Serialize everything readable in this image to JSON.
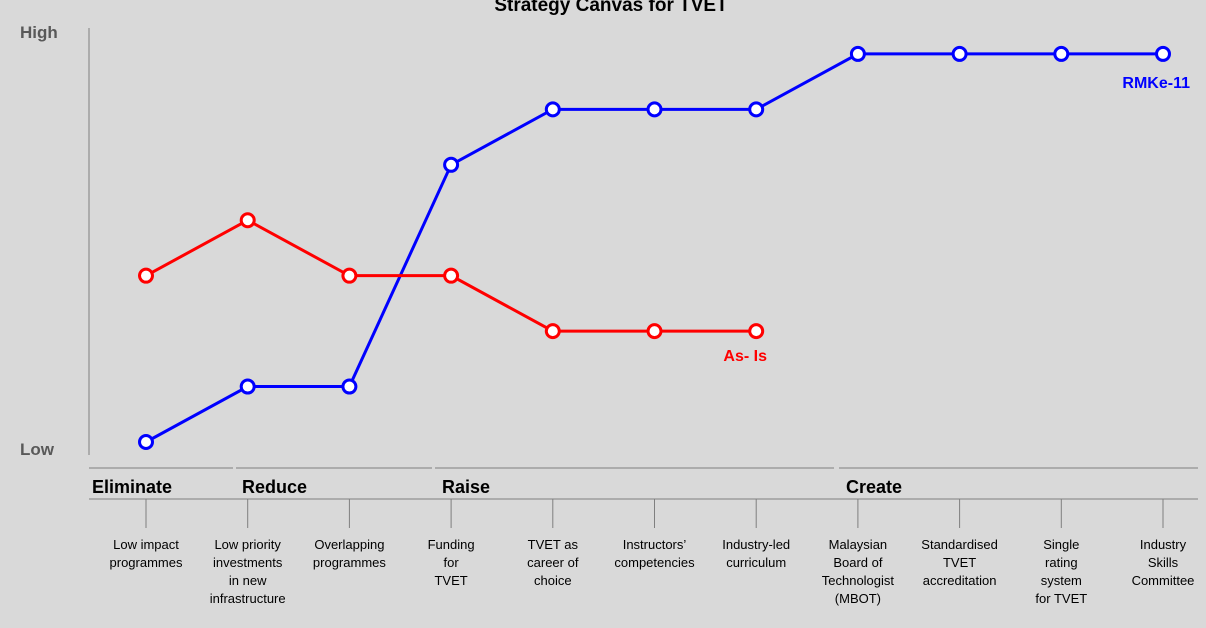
{
  "chart_data": {
    "type": "line",
    "title": "Strategy Canvas for TVET",
    "y_high_label": "High",
    "y_low_label": "Low",
    "ylim": [
      0,
      10
    ],
    "grid": false,
    "groups": [
      {
        "label": "Eliminate",
        "categories": [
          0
        ]
      },
      {
        "label": "Reduce",
        "categories": [
          1,
          2
        ]
      },
      {
        "label": "Raise",
        "categories": [
          3,
          4,
          5,
          6
        ]
      },
      {
        "label": "Create",
        "categories": [
          7,
          8,
          9,
          10
        ]
      }
    ],
    "categories": [
      [
        "Low impact",
        "programmes"
      ],
      [
        "Low priority",
        "investments",
        "in new",
        "infrastructure"
      ],
      [
        "Overlapping",
        "programmes"
      ],
      [
        "Funding",
        "for",
        "TVET"
      ],
      [
        "TVET as",
        "career of",
        "choice"
      ],
      [
        "Instructors’",
        "competencies"
      ],
      [
        "Industry-led",
        "curriculum"
      ],
      [
        "Malaysian",
        "Board of",
        "Technologist",
        "(MBOT)"
      ],
      [
        "Standardised",
        "TVET",
        "accreditation"
      ],
      [
        "Single",
        "rating",
        "system",
        "for TVET"
      ],
      [
        "Industry",
        "Skills",
        "Committee"
      ]
    ],
    "series": [
      {
        "name": "RMKe-11",
        "color": "#0000ff",
        "values": [
          0,
          1.4,
          1.4,
          7,
          8.4,
          8.4,
          8.4,
          9.8,
          9.8,
          9.8,
          9.8
        ]
      },
      {
        "name": "As- Is",
        "color": "#ff0000",
        "values": [
          4.2,
          5.6,
          4.2,
          4.2,
          2.8,
          2.8,
          2.8,
          null,
          null,
          null,
          null
        ]
      }
    ]
  }
}
